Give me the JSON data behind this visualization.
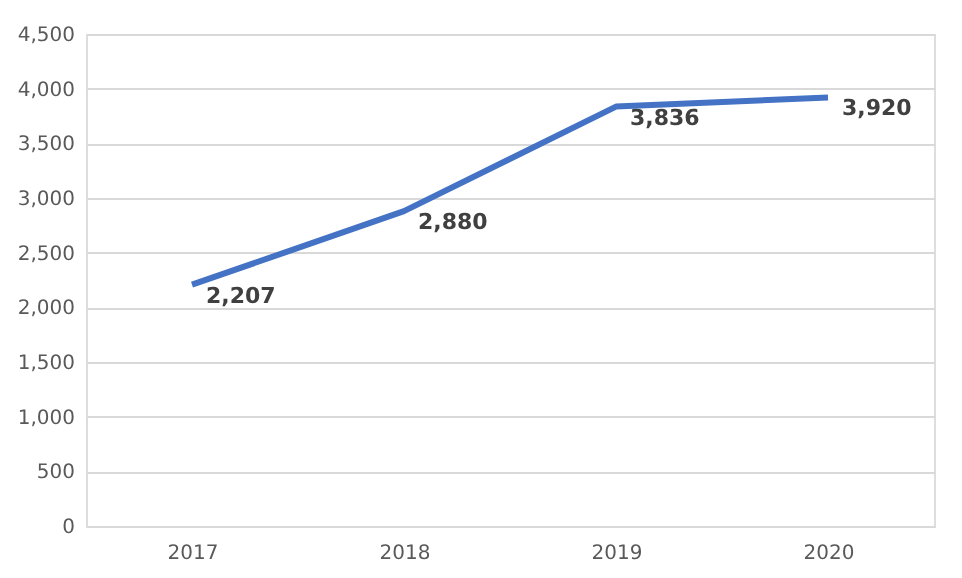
{
  "chart_data": {
    "type": "line",
    "categories": [
      "2017",
      "2018",
      "2019",
      "2020"
    ],
    "series": [
      {
        "color": "#4472c4",
        "values": [
          2207,
          2880,
          3836,
          3920
        ],
        "value_labels": [
          "2,207",
          "2,880",
          "3,836",
          "3,920"
        ]
      }
    ],
    "ylim": [
      0,
      4500
    ],
    "yticks": [
      {
        "value": 0,
        "label": "0"
      },
      {
        "value": 500,
        "label": "500"
      },
      {
        "value": 1000,
        "label": "1,000"
      },
      {
        "value": 1500,
        "label": "1,500"
      },
      {
        "value": 2000,
        "label": "2,000"
      },
      {
        "value": 2500,
        "label": "2,500"
      },
      {
        "value": 3000,
        "label": "3,000"
      },
      {
        "value": 3500,
        "label": "3,500"
      },
      {
        "value": 4000,
        "label": "4,000"
      },
      {
        "value": 4500,
        "label": "4,500"
      }
    ],
    "grid": "y",
    "marker": "none",
    "line_style": "solid"
  }
}
